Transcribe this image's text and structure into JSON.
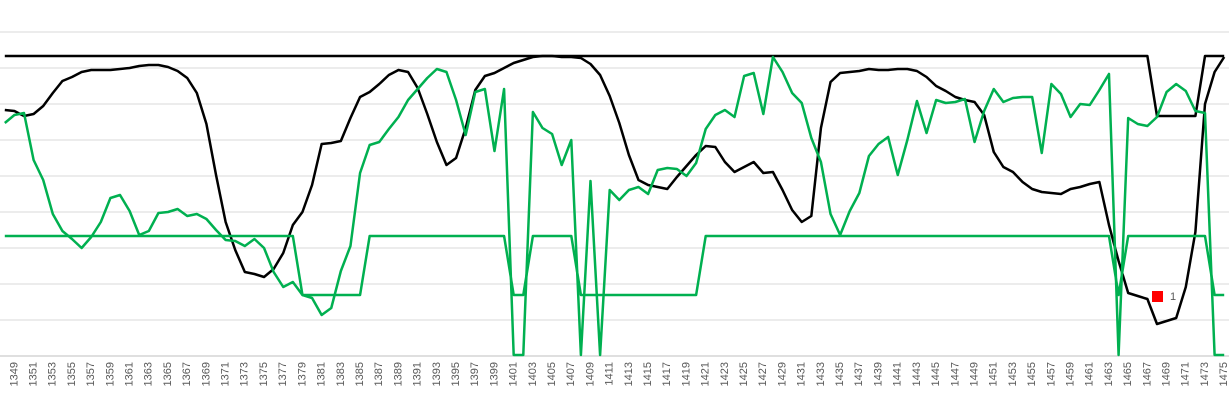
{
  "chart_data": {
    "type": "line",
    "categories": [
      null,
      "1349",
      null,
      "1351",
      null,
      "1353",
      null,
      "1355",
      null,
      "1357",
      null,
      "1359",
      null,
      "1361",
      null,
      "1363",
      null,
      "1365",
      null,
      "1367",
      null,
      "1369",
      null,
      "1371",
      null,
      "1373",
      null,
      "1375",
      null,
      "1377",
      null,
      "1379",
      null,
      "1381",
      null,
      "1383",
      null,
      "1385",
      null,
      "1387",
      null,
      "1389",
      null,
      "1391",
      null,
      "1393",
      null,
      "1395",
      null,
      "1397",
      null,
      "1399",
      null,
      "1401",
      null,
      "1403",
      null,
      "1405",
      null,
      "1407",
      null,
      "1409",
      null,
      "1411",
      null,
      "1413",
      null,
      "1415",
      null,
      "1417",
      null,
      "1419",
      null,
      "1421",
      null,
      "1423",
      null,
      "1425",
      null,
      "1427",
      null,
      "1429",
      null,
      "1431",
      null,
      "1433",
      null,
      "1435",
      null,
      "1437",
      null,
      "1439",
      null,
      "1441",
      null,
      "1443",
      null,
      "1445",
      null,
      "1447",
      null,
      "1449",
      null,
      "1451",
      null,
      "1453",
      null,
      "1455",
      null,
      "1457",
      null,
      "1459",
      null,
      "1461",
      null,
      "1463",
      null,
      "1465",
      null,
      "1467",
      null,
      "1469",
      null,
      "1471",
      null,
      "1473",
      null,
      "1475"
    ],
    "series": [
      {
        "color": "#000000",
        "values": [
          246,
          245,
          240,
          242,
          250,
          263,
          275,
          279,
          284,
          286,
          286,
          286,
          287,
          288,
          290,
          291,
          291,
          289,
          285,
          278,
          263,
          232,
          181,
          134,
          106,
          84,
          82,
          79,
          87,
          103,
          131,
          144,
          171,
          212,
          213,
          215,
          238,
          259,
          264,
          272,
          281,
          286,
          284,
          268,
          242,
          214,
          191,
          198,
          228,
          266,
          280,
          283,
          288,
          293,
          296,
          299,
          300,
          300,
          299,
          299,
          298,
          292,
          281,
          260,
          233,
          201,
          176,
          171,
          169,
          167,
          179,
          190,
          201,
          210,
          209,
          194,
          184,
          189,
          194,
          183,
          184,
          166,
          146,
          134,
          140,
          228,
          274,
          283,
          284,
          285,
          287,
          286,
          286,
          287,
          287,
          285,
          279,
          270,
          265,
          259,
          256,
          254,
          241,
          204,
          189,
          184,
          174,
          167,
          164,
          163,
          162,
          167,
          169,
          172,
          174,
          131,
          95,
          63,
          60,
          57,
          32,
          35,
          38,
          69,
          124,
          252,
          284,
          299
        ]
      },
      {
        "color": "#000000",
        "values": [
          300,
          300,
          300,
          300,
          300,
          300,
          300,
          300,
          300,
          300,
          300,
          300,
          300,
          300,
          300,
          300,
          300,
          300,
          300,
          300,
          300,
          300,
          300,
          300,
          300,
          300,
          300,
          300,
          300,
          300,
          300,
          300,
          300,
          300,
          300,
          300,
          300,
          300,
          300,
          300,
          300,
          300,
          300,
          300,
          300,
          300,
          300,
          300,
          300,
          300,
          300,
          300,
          300,
          300,
          300,
          300,
          300,
          300,
          300,
          300,
          300,
          300,
          300,
          300,
          300,
          300,
          300,
          300,
          300,
          300,
          300,
          300,
          300,
          300,
          300,
          300,
          300,
          300,
          300,
          300,
          300,
          300,
          300,
          300,
          300,
          300,
          300,
          300,
          300,
          300,
          300,
          300,
          300,
          300,
          300,
          300,
          300,
          300,
          300,
          300,
          300,
          300,
          300,
          300,
          300,
          300,
          300,
          300,
          300,
          300,
          300,
          300,
          300,
          300,
          300,
          300,
          300,
          300,
          300,
          300,
          240,
          240,
          240,
          240,
          240,
          300,
          300,
          300
        ]
      },
      {
        "color": "#00b050",
        "values": [
          233,
          241,
          243,
          196,
          176,
          142,
          125,
          117,
          108,
          119,
          134,
          158,
          161,
          145,
          121,
          125,
          143,
          144,
          147,
          140,
          142,
          137,
          126,
          116,
          115,
          110,
          117,
          108,
          84,
          69,
          74,
          61,
          58,
          41,
          48,
          85,
          110,
          183,
          211,
          214,
          227,
          239,
          256,
          267,
          278,
          287,
          284,
          256,
          221,
          264,
          267,
          205,
          267,
          1,
          1,
          244,
          228,
          222,
          191,
          216,
          1,
          175,
          1,
          166,
          156,
          166,
          169,
          162,
          186,
          188,
          187,
          180,
          193,
          227,
          241,
          246,
          239,
          280,
          283,
          242,
          299,
          284,
          263,
          253,
          218,
          194,
          142,
          121,
          145,
          163,
          200,
          212,
          219,
          181,
          216,
          255,
          223,
          256,
          253,
          254,
          257,
          214,
          245,
          267,
          254,
          258,
          259,
          259,
          203,
          272,
          262,
          239,
          252,
          251,
          266,
          282,
          1,
          238,
          232,
          230,
          239,
          264,
          272,
          265,
          245,
          243,
          1,
          1
        ]
      },
      {
        "color": "#00b050",
        "values": [
          120,
          120,
          120,
          120,
          120,
          120,
          120,
          120,
          120,
          120,
          120,
          120,
          120,
          120,
          120,
          120,
          120,
          120,
          120,
          120,
          120,
          120,
          120,
          120,
          120,
          120,
          120,
          120,
          120,
          120,
          120,
          61,
          61,
          61,
          61,
          61,
          61,
          61,
          120,
          120,
          120,
          120,
          120,
          120,
          120,
          120,
          120,
          120,
          120,
          120,
          120,
          120,
          120,
          61,
          61,
          120,
          120,
          120,
          120,
          120,
          61,
          61,
          61,
          61,
          61,
          61,
          61,
          61,
          61,
          61,
          61,
          61,
          61,
          120,
          120,
          120,
          120,
          120,
          120,
          120,
          120,
          120,
          120,
          120,
          120,
          120,
          120,
          120,
          120,
          120,
          120,
          120,
          120,
          120,
          120,
          120,
          120,
          120,
          120,
          120,
          120,
          120,
          120,
          120,
          120,
          120,
          120,
          120,
          120,
          120,
          120,
          120,
          120,
          120,
          120,
          120,
          61,
          120,
          120,
          120,
          120,
          120,
          120,
          120,
          120,
          120,
          61,
          61
        ]
      },
      {
        "name": "1",
        "color": "#ff0000",
        "values": [
          null,
          null,
          null,
          null,
          null,
          null,
          null,
          null,
          null,
          null,
          null,
          null,
          null,
          null,
          null,
          null,
          null,
          null,
          null,
          null,
          null,
          null,
          null,
          null,
          null,
          null,
          null,
          null,
          null,
          null,
          null,
          null,
          null,
          null,
          null,
          null,
          null,
          null,
          null,
          null,
          null,
          null,
          null,
          null,
          null,
          null,
          null,
          null,
          null,
          null,
          null,
          null,
          null,
          null,
          null,
          null,
          null,
          null,
          null,
          null,
          null,
          null,
          null,
          null,
          null,
          null,
          null,
          null,
          null,
          null,
          null,
          null,
          null,
          null,
          null,
          null,
          null,
          null,
          null,
          null,
          null,
          null,
          null,
          null,
          null,
          null,
          null,
          null,
          null,
          null,
          null,
          null,
          null,
          null,
          null,
          null,
          null,
          null,
          null,
          null,
          null,
          null,
          null,
          null,
          null,
          null,
          null,
          null,
          null,
          null,
          null,
          null,
          null,
          null,
          null,
          null,
          null,
          null,
          null,
          null,
          null,
          null,
          null,
          null,
          null,
          null,
          null,
          null
        ]
      }
    ],
    "ylim": [
      0,
      356
    ],
    "yticks": [
      36,
      72,
      108,
      144,
      180,
      216,
      252,
      288,
      324
    ],
    "grid": true,
    "legend": "bottom-right"
  }
}
